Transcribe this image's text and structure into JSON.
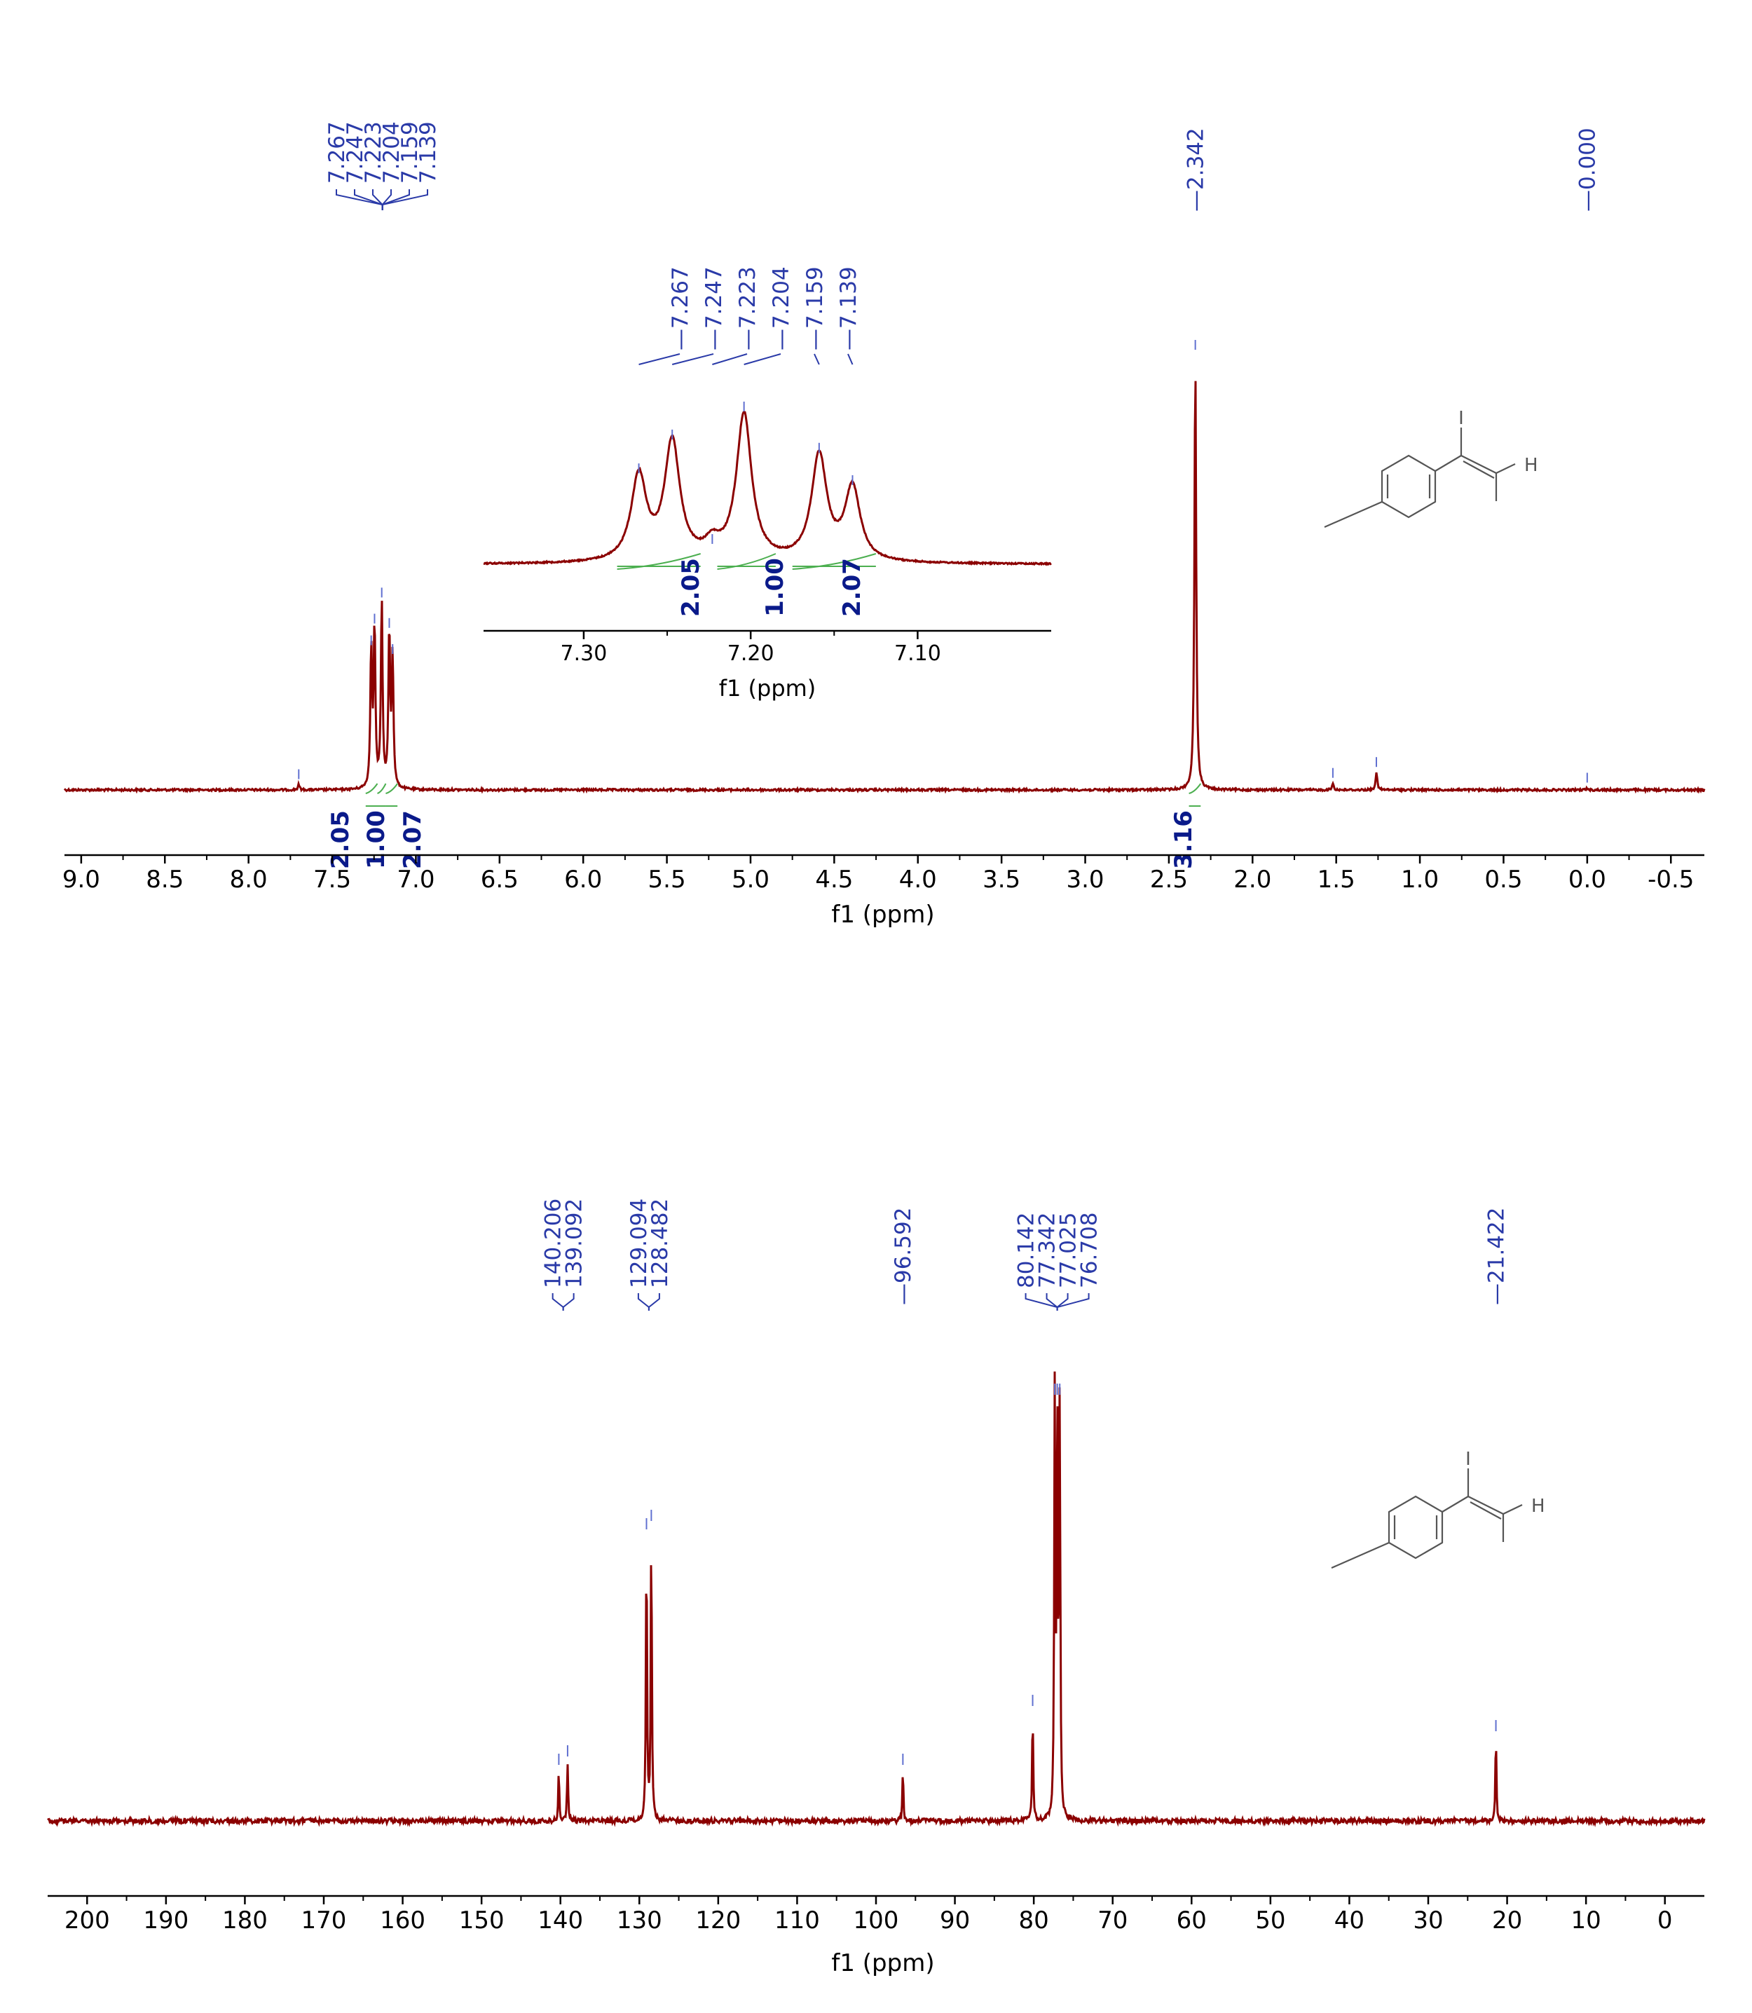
{
  "chart_data": [
    {
      "type": "line",
      "nucleus": "1H",
      "xlabel": "f1 (ppm)",
      "xlim": [
        9.1,
        -0.7
      ],
      "ticks": [
        "9.0",
        "8.5",
        "8.0",
        "7.5",
        "7.0",
        "6.5",
        "6.0",
        "5.5",
        "5.0",
        "4.5",
        "4.0",
        "3.5",
        "3.0",
        "2.5",
        "2.0",
        "1.5",
        "1.0",
        "0.5",
        "0.0",
        "-0.5"
      ],
      "peaks": [
        {
          "ppm": 7.267,
          "height": 0.32
        },
        {
          "ppm": 7.247,
          "height": 0.37
        },
        {
          "ppm": 7.204,
          "height": 0.43
        },
        {
          "ppm": 7.159,
          "height": 0.36
        },
        {
          "ppm": 7.139,
          "height": 0.3
        },
        {
          "ppm": 7.7,
          "height": 0.012
        },
        {
          "ppm": 2.342,
          "height": 1.0
        },
        {
          "ppm": 1.26,
          "height": 0.04
        },
        {
          "ppm": 1.52,
          "height": 0.015
        },
        {
          "ppm": 0.0,
          "height": 0.004
        }
      ],
      "peak_label_groups": [
        {
          "labels": [
            "7.267",
            "7.247",
            "7.223",
            "7.204",
            "7.159",
            "7.139"
          ],
          "target_ppm": 7.2
        },
        {
          "labels": [
            "2.342"
          ],
          "target_ppm": 2.342
        },
        {
          "labels": [
            "0.000"
          ],
          "target_ppm": 0.0
        }
      ],
      "integrals": [
        {
          "value": "2.05",
          "from": 7.3,
          "to": 7.23
        },
        {
          "value": "1.00",
          "from": 7.23,
          "to": 7.18
        },
        {
          "value": "2.07",
          "from": 7.18,
          "to": 7.11
        },
        {
          "value": "3.16",
          "from": 2.38,
          "to": 2.31
        }
      ],
      "inset": {
        "xlabel": "f1 (ppm)",
        "xlim": [
          7.36,
          7.02
        ],
        "ticks": [
          "7.30",
          "7.20",
          "7.10"
        ],
        "peak_labels": [
          "7.267",
          "7.247",
          "7.223",
          "7.204",
          "7.159",
          "7.139"
        ],
        "peaks": [
          {
            "ppm": 7.267,
            "height": 0.58
          },
          {
            "ppm": 7.247,
            "height": 0.81
          },
          {
            "ppm": 7.223,
            "height": 0.1
          },
          {
            "ppm": 7.204,
            "height": 1.0
          },
          {
            "ppm": 7.159,
            "height": 0.72
          },
          {
            "ppm": 7.139,
            "height": 0.5
          }
        ],
        "integrals": [
          {
            "value": "2.05",
            "from": 7.28,
            "to": 7.23
          },
          {
            "value": "1.00",
            "from": 7.22,
            "to": 7.185
          },
          {
            "value": "2.07",
            "from": 7.175,
            "to": 7.125
          }
        ]
      }
    },
    {
      "type": "line",
      "nucleus": "13C",
      "xlabel": "f1 (ppm)",
      "xlim": [
        205,
        -5
      ],
      "ticks": [
        "200",
        "190",
        "180",
        "170",
        "160",
        "150",
        "140",
        "130",
        "120",
        "110",
        "100",
        "90",
        "80",
        "70",
        "60",
        "50",
        "40",
        "30",
        "20",
        "10",
        "0"
      ],
      "peaks": [
        {
          "ppm": 140.206,
          "height": 0.12
        },
        {
          "ppm": 139.092,
          "height": 0.14
        },
        {
          "ppm": 129.094,
          "height": 0.68
        },
        {
          "ppm": 128.482,
          "height": 0.7
        },
        {
          "ppm": 96.592,
          "height": 0.12
        },
        {
          "ppm": 80.142,
          "height": 0.26
        },
        {
          "ppm": 77.342,
          "height": 1.0
        },
        {
          "ppm": 77.025,
          "height": 1.0
        },
        {
          "ppm": 76.708,
          "height": 1.0
        },
        {
          "ppm": 21.422,
          "height": 0.2
        }
      ],
      "peak_label_groups": [
        {
          "labels": [
            "140.206",
            "139.092"
          ],
          "target_ppm": 139.65
        },
        {
          "labels": [
            "129.094",
            "128.482"
          ],
          "target_ppm": 128.79
        },
        {
          "labels": [
            "96.592"
          ],
          "target_ppm": 96.592
        },
        {
          "labels": [
            "80.142",
            "77.342",
            "77.025",
            "76.708"
          ],
          "target_ppm": 77.03
        },
        {
          "labels": [
            "21.422"
          ],
          "target_ppm": 21.422
        }
      ]
    }
  ],
  "structure": {
    "substituent_labels": [
      "I",
      "H"
    ]
  },
  "colors": {
    "spectrum": "#8b0000",
    "labels": "#2a3aa8",
    "integral_text": "#0a1a8a",
    "integral_curve": "#4caf50",
    "axis": "#000000"
  }
}
